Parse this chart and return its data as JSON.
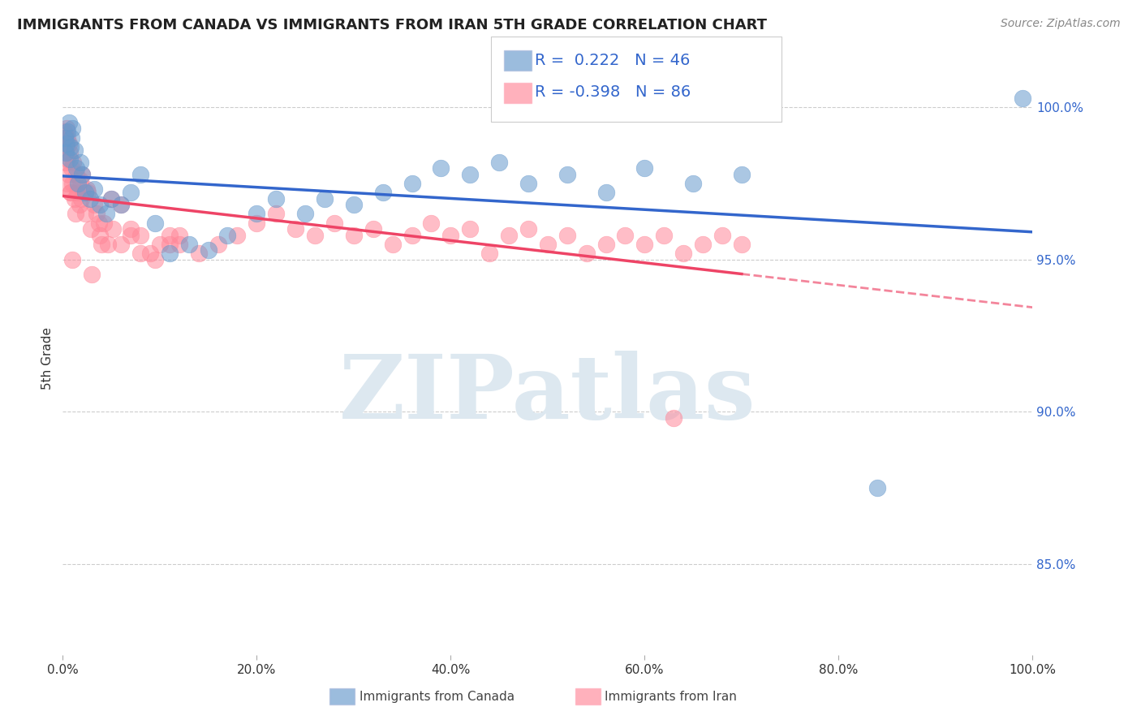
{
  "title": "IMMIGRANTS FROM CANADA VS IMMIGRANTS FROM IRAN 5TH GRADE CORRELATION CHART",
  "source": "Source: ZipAtlas.com",
  "ylabel": "5th Grade",
  "xlim": [
    0.0,
    100.0
  ],
  "ylim": [
    82.0,
    101.5
  ],
  "yticks": [
    85.0,
    90.0,
    95.0,
    100.0
  ],
  "xticks": [
    0.0,
    20.0,
    40.0,
    60.0,
    80.0,
    100.0
  ],
  "canada_R": 0.222,
  "canada_N": 46,
  "iran_R": -0.398,
  "iran_N": 86,
  "canada_color": "#6699CC",
  "iran_color": "#FF8899",
  "canada_trend_color": "#3366CC",
  "iran_trend_color": "#EE4466",
  "background_color": "#ffffff",
  "grid_color": "#cccccc",
  "canada_x": [
    0.2,
    0.3,
    0.4,
    0.5,
    0.6,
    0.7,
    0.8,
    0.9,
    1.0,
    1.2,
    1.4,
    1.6,
    1.8,
    2.0,
    2.3,
    2.8,
    3.2,
    3.8,
    4.5,
    5.0,
    6.0,
    7.0,
    8.0,
    9.5,
    11.0,
    13.0,
    15.0,
    17.0,
    20.0,
    22.0,
    25.0,
    27.0,
    30.0,
    33.0,
    36.0,
    39.0,
    42.0,
    45.0,
    48.0,
    52.0,
    56.0,
    60.0,
    65.0,
    70.0,
    84.0,
    99.0
  ],
  "canada_y": [
    99.0,
    98.5,
    98.8,
    99.2,
    99.5,
    98.3,
    98.7,
    99.0,
    99.3,
    98.6,
    98.0,
    97.5,
    98.2,
    97.8,
    97.2,
    97.0,
    97.3,
    96.8,
    96.5,
    97.0,
    96.8,
    97.2,
    97.8,
    96.2,
    95.2,
    95.5,
    95.3,
    95.8,
    96.5,
    97.0,
    96.5,
    97.0,
    96.8,
    97.2,
    97.5,
    98.0,
    97.8,
    98.2,
    97.5,
    97.8,
    97.2,
    98.0,
    97.5,
    97.8,
    87.5,
    100.3
  ],
  "iran_x": [
    0.1,
    0.15,
    0.2,
    0.25,
    0.3,
    0.35,
    0.4,
    0.45,
    0.5,
    0.6,
    0.7,
    0.8,
    0.9,
    1.0,
    1.1,
    1.2,
    1.4,
    1.5,
    1.7,
    1.9,
    2.1,
    2.3,
    2.6,
    2.9,
    3.2,
    3.5,
    3.8,
    4.2,
    4.7,
    5.2,
    6.0,
    7.0,
    8.0,
    9.5,
    11.0,
    12.0,
    14.0,
    16.0,
    18.0,
    20.0,
    22.0,
    24.0,
    26.0,
    28.0,
    30.0,
    32.0,
    34.0,
    36.0,
    38.0,
    40.0,
    42.0,
    44.0,
    46.0,
    48.0,
    50.0,
    52.0,
    54.0,
    56.0,
    58.0,
    60.0,
    62.0,
    64.0,
    66.0,
    68.0,
    70.0,
    1.0,
    2.0,
    3.0,
    4.0,
    0.5,
    5.0,
    6.0,
    7.0,
    8.0,
    9.0,
    10.0,
    11.0,
    12.0,
    0.3,
    0.8,
    63.0,
    1.3,
    2.5,
    3.7,
    0.6,
    1.8
  ],
  "iran_y": [
    99.2,
    98.8,
    99.0,
    98.5,
    98.2,
    99.3,
    98.7,
    99.0,
    98.3,
    97.8,
    98.5,
    97.2,
    98.0,
    97.5,
    98.2,
    97.0,
    97.8,
    97.2,
    96.8,
    97.0,
    97.3,
    96.5,
    97.2,
    96.0,
    96.8,
    96.5,
    95.8,
    96.2,
    95.5,
    96.0,
    95.5,
    95.8,
    95.2,
    95.0,
    95.5,
    95.8,
    95.2,
    95.5,
    95.8,
    96.2,
    96.5,
    96.0,
    95.8,
    96.2,
    95.8,
    96.0,
    95.5,
    95.8,
    96.2,
    95.8,
    96.0,
    95.2,
    95.8,
    96.0,
    95.5,
    95.8,
    95.2,
    95.5,
    95.8,
    95.5,
    95.8,
    95.2,
    95.5,
    95.8,
    95.5,
    95.0,
    97.8,
    94.5,
    95.5,
    97.5,
    97.0,
    96.8,
    96.0,
    95.8,
    95.2,
    95.5,
    95.8,
    95.5,
    99.0,
    97.2,
    89.8,
    96.5,
    97.3,
    96.2,
    98.8,
    97.6
  ]
}
